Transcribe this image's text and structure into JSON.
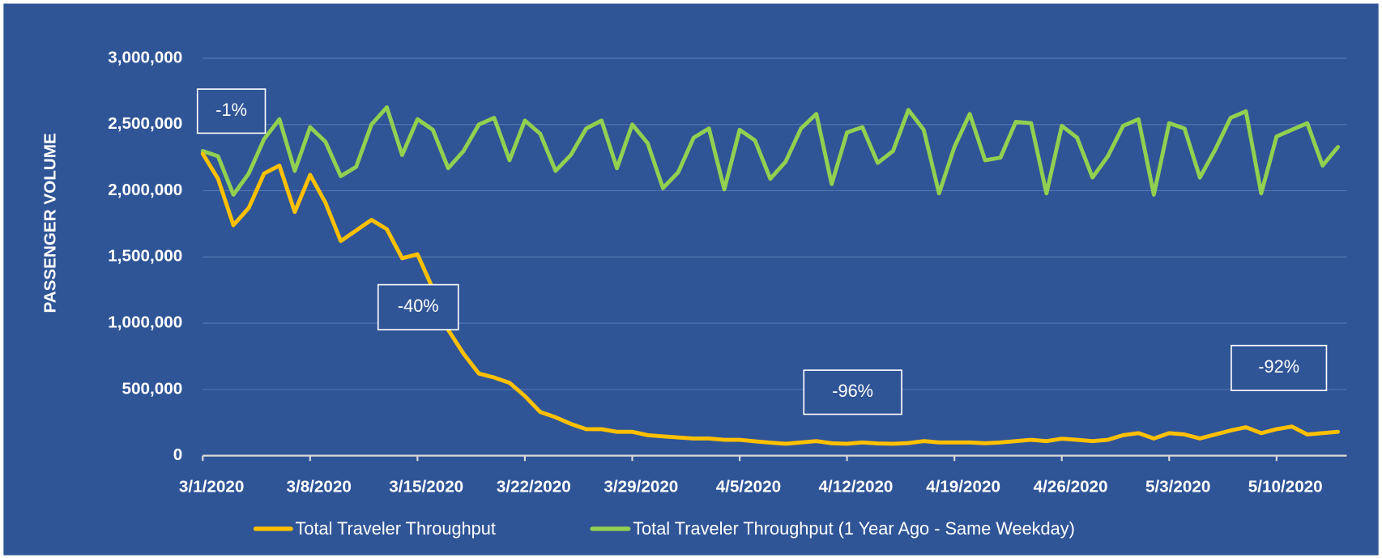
{
  "chart_data": {
    "type": "line",
    "y_label": "PASSENGER VOLUME",
    "categories": [
      "3/1/2020",
      null,
      null,
      null,
      null,
      null,
      null,
      "3/8/2020",
      null,
      null,
      null,
      null,
      null,
      null,
      "3/15/2020",
      null,
      null,
      null,
      null,
      null,
      null,
      "3/22/2020",
      null,
      null,
      null,
      null,
      null,
      null,
      "3/29/2020",
      null,
      null,
      null,
      null,
      null,
      null,
      "4/5/2020",
      null,
      null,
      null,
      null,
      null,
      null,
      "4/12/2020",
      null,
      null,
      null,
      null,
      null,
      null,
      "4/19/2020",
      null,
      null,
      null,
      null,
      null,
      null,
      "4/26/2020",
      null,
      null,
      null,
      null,
      null,
      null,
      "5/3/2020",
      null,
      null,
      null,
      null,
      null,
      null,
      "5/10/2020",
      null,
      null,
      null,
      null
    ],
    "series": [
      {
        "name": "Total Traveler Throughput",
        "color": "#ffc000",
        "values": [
          2280000,
          2090000,
          1740000,
          1870000,
          2130000,
          2190000,
          1840000,
          2120000,
          1910000,
          1620000,
          1700000,
          1780000,
          1710000,
          1490000,
          1520000,
          1260000,
          950000,
          770000,
          620000,
          590000,
          550000,
          450000,
          330000,
          290000,
          240000,
          200000,
          200000,
          180000,
          180000,
          155000,
          146000,
          137000,
          130000,
          130000,
          120000,
          120000,
          108000,
          98000,
          90000,
          100000,
          110000,
          94000,
          90000,
          100000,
          92000,
          90000,
          95000,
          110000,
          100000,
          100000,
          100000,
          94000,
          100000,
          110000,
          120000,
          110000,
          128000,
          120000,
          110000,
          120000,
          155000,
          170000,
          130000,
          170000,
          160000,
          130000,
          160000,
          190000,
          215000,
          170000,
          200000,
          220000,
          160000,
          170000,
          180000
        ]
      },
      {
        "name": "Total Traveler Throughput (1 Year Ago - Same Weekday)",
        "color": "#92d050",
        "values": [
          2300000,
          2260000,
          1970000,
          2130000,
          2390000,
          2540000,
          2150000,
          2480000,
          2370000,
          2110000,
          2180000,
          2500000,
          2630000,
          2270000,
          2540000,
          2460000,
          2170000,
          2300000,
          2500000,
          2550000,
          2230000,
          2530000,
          2430000,
          2150000,
          2270000,
          2470000,
          2530000,
          2170000,
          2500000,
          2360000,
          2020000,
          2140000,
          2400000,
          2470000,
          2010000,
          2460000,
          2380000,
          2090000,
          2220000,
          2470000,
          2580000,
          2050000,
          2440000,
          2480000,
          2210000,
          2300000,
          2610000,
          2460000,
          1980000,
          2330000,
          2580000,
          2230000,
          2250000,
          2520000,
          2510000,
          1980000,
          2490000,
          2400000,
          2100000,
          2260000,
          2490000,
          2540000,
          1970000,
          2510000,
          2470000,
          2100000,
          2310000,
          2550000,
          2600000,
          1980000,
          2410000,
          2460000,
          2510000,
          2190000,
          2330000
        ]
      }
    ],
    "ylim": [
      0,
      3000000
    ],
    "yticks": [
      0,
      {
        "value": 500000,
        "label": "500,000"
      },
      {
        "value": 1000000,
        "label": "1,000,000"
      },
      {
        "value": 1500000,
        "label": "1,500,000"
      },
      {
        "value": 2000000,
        "label": "2,000,000"
      },
      {
        "value": 2500000,
        "label": "2,500,000"
      },
      {
        "value": 3000000,
        "label": "3,000,000"
      }
    ],
    "grid": true,
    "legend": "bottom",
    "annotations": [
      "-1%",
      "-40%",
      "-96%",
      "-92%"
    ]
  }
}
